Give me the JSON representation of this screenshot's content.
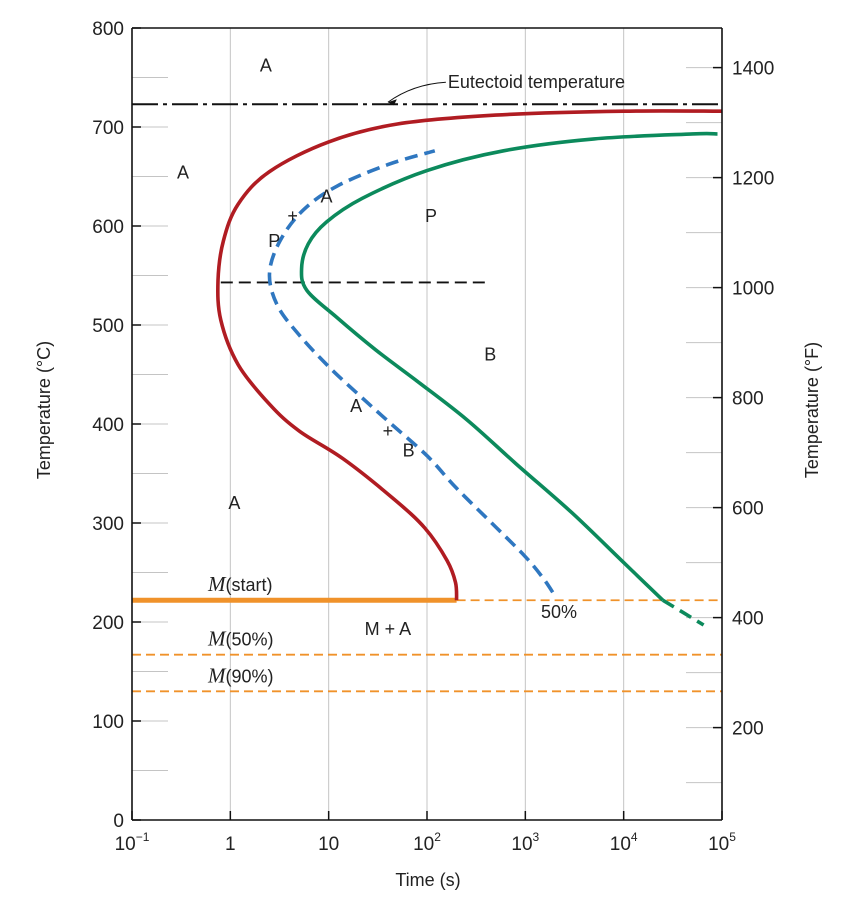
{
  "chart_data": {
    "type": "line",
    "xlabel": "Time (s)",
    "ylabel_left": "Temperature (°C)",
    "ylabel_right": "Temperature (°F)",
    "xscale": "log",
    "xlim": [
      0.1,
      100000
    ],
    "ylim": [
      0,
      800
    ],
    "x_ticks": [
      {
        "value": 0.1,
        "base": "10",
        "exp": "−1"
      },
      {
        "value": 1,
        "base": "1",
        "exp": ""
      },
      {
        "value": 10,
        "base": "10",
        "exp": ""
      },
      {
        "value": 100,
        "base": "10",
        "exp": "2"
      },
      {
        "value": 1000,
        "base": "10",
        "exp": "3"
      },
      {
        "value": 10000,
        "base": "10",
        "exp": "4"
      },
      {
        "value": 100000,
        "base": "10",
        "exp": "5"
      }
    ],
    "y_ticks_left": [
      0,
      100,
      200,
      300,
      400,
      500,
      600,
      700,
      800
    ],
    "y_ticks_right_F": [
      200,
      400,
      600,
      800,
      1000,
      1200,
      1400
    ],
    "grid": true,
    "series": [
      {
        "key": "start",
        "color": "#b01c22",
        "style": "solid",
        "points": [
          [
            200,
            222
          ],
          [
            195,
            240
          ],
          [
            160,
            262
          ],
          [
            95,
            295
          ],
          [
            45,
            325
          ],
          [
            14,
            365
          ],
          [
            5,
            393
          ],
          [
            2.5,
            420
          ],
          [
            1.2,
            460
          ],
          [
            0.8,
            505
          ],
          [
            0.75,
            545
          ],
          [
            0.85,
            585
          ],
          [
            1.2,
            622
          ],
          [
            2.5,
            655
          ],
          [
            10,
            685
          ],
          [
            50,
            703
          ],
          [
            500,
            712
          ],
          [
            10000,
            716
          ],
          [
            100000,
            716
          ]
        ]
      },
      {
        "key": "fifty",
        "color": "#2f77c0",
        "style": "dashed",
        "points": [
          [
            1900,
            230
          ],
          [
            1500,
            245
          ],
          [
            1000,
            266
          ],
          [
            500,
            296
          ],
          [
            200,
            335
          ],
          [
            100,
            368
          ],
          [
            40,
            403
          ],
          [
            20,
            430
          ],
          [
            10,
            458
          ],
          [
            5,
            490
          ],
          [
            3,
            520
          ],
          [
            2.5,
            552
          ],
          [
            3.2,
            585
          ],
          [
            5.5,
            616
          ],
          [
            12,
            640
          ],
          [
            40,
            662
          ],
          [
            120,
            676
          ]
        ]
      },
      {
        "key": "finish",
        "color": "#0c8a5c",
        "style": "solid",
        "points": [
          [
            25000,
            222
          ],
          [
            10000,
            260
          ],
          [
            3000,
            310
          ],
          [
            800,
            360
          ],
          [
            250,
            405
          ],
          [
            80,
            443
          ],
          [
            30,
            475
          ],
          [
            12,
            508
          ],
          [
            6,
            535
          ],
          [
            5.3,
            557
          ],
          [
            6.2,
            582
          ],
          [
            9.5,
            604
          ],
          [
            22,
            628
          ],
          [
            100,
            656
          ],
          [
            600,
            676
          ],
          [
            5000,
            688
          ],
          [
            50000,
            693
          ],
          [
            90000,
            693
          ]
        ]
      },
      {
        "key": "finish-tail",
        "color": "#0c8a5c",
        "style": "dashed",
        "points": [
          [
            25000,
            222
          ],
          [
            65000,
            197
          ]
        ]
      }
    ],
    "eutectoid": {
      "y": 723,
      "label": "Eutectoid temperature",
      "color": "#111111"
    },
    "nose_line": {
      "x_from": 0.8,
      "x_to": 400,
      "y": 543
    },
    "martensite": [
      {
        "key": "mstart",
        "symbol": "M",
        "suffix": "(start)",
        "y": 222,
        "color": "#f0922a",
        "x_solid_end": 200
      },
      {
        "key": "m50",
        "symbol": "M",
        "suffix": "(50%)",
        "y": 167,
        "color": "#f0922a"
      },
      {
        "key": "m90",
        "symbol": "M",
        "suffix": "(90%)",
        "y": 130,
        "color": "#f0922a"
      }
    ],
    "labels": [
      {
        "key": "a-top",
        "text": "A",
        "x": 2.3,
        "y": 762
      },
      {
        "key": "a-left",
        "text": "A",
        "x": 0.33,
        "y": 654
      },
      {
        "key": "a-mid",
        "text": "A",
        "x": 9.5,
        "y": 630
      },
      {
        "key": "plus-upper",
        "text": "+",
        "x": 4.3,
        "y": 610
      },
      {
        "key": "p-left",
        "text": "P",
        "x": 2.8,
        "y": 585
      },
      {
        "key": "p-right",
        "text": "P",
        "x": 110,
        "y": 610
      },
      {
        "key": "b-right",
        "text": "B",
        "x": 440,
        "y": 470
      },
      {
        "key": "a-lower",
        "text": "A",
        "x": 19,
        "y": 418
      },
      {
        "key": "plus-lower",
        "text": "+",
        "x": 40,
        "y": 393
      },
      {
        "key": "b-lower",
        "text": "B",
        "x": 65,
        "y": 373
      },
      {
        "key": "a-bottom",
        "text": "A",
        "x": 1.1,
        "y": 320
      },
      {
        "key": "m-plus-a",
        "text": "M + A",
        "x": 40,
        "y": 193
      },
      {
        "key": "pct-50",
        "text": "50%",
        "x": 2200,
        "y": 210
      }
    ]
  }
}
